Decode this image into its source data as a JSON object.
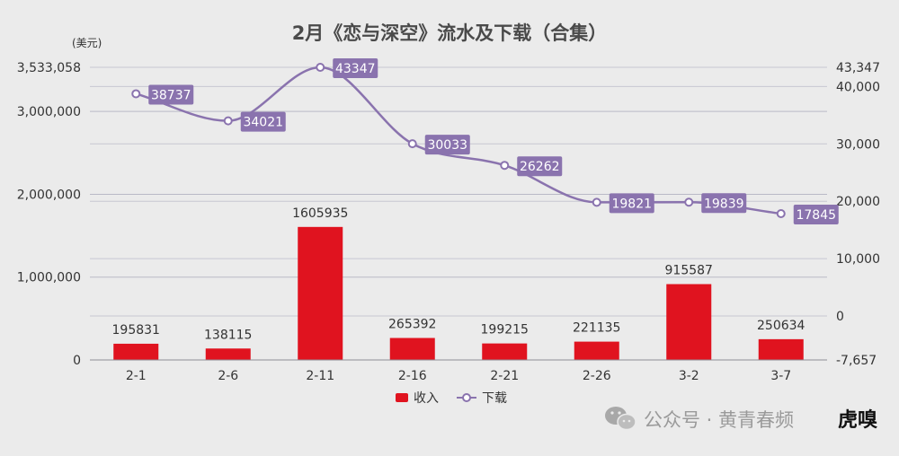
{
  "chart_data": {
    "type": "bar",
    "title": "2月《恋与深空》流水及下载（合集）",
    "categories": [
      "2-1",
      "2-6",
      "2-11",
      "2-16",
      "2-21",
      "2-26",
      "3-2",
      "3-7"
    ],
    "series": [
      {
        "name": "收入",
        "type": "bar",
        "axis": "left",
        "color": "#e0131f",
        "values": [
          195831,
          138115,
          1605935,
          265392,
          199215,
          221135,
          915587,
          250634
        ]
      },
      {
        "name": "下载",
        "type": "line",
        "axis": "right",
        "color": "#8a73ae",
        "values": [
          38737,
          34021,
          43347,
          30033,
          26262,
          19821,
          19839,
          17845
        ]
      }
    ],
    "y_left": {
      "unit": "(美元)",
      "min": 0,
      "max": 3533058,
      "ticks": [
        "0",
        "1,000,000",
        "2,000,000",
        "3,000,000",
        "3,533,058"
      ]
    },
    "y_right": {
      "min": -7657,
      "max": 43347,
      "ticks": [
        "-7,657",
        "0",
        "10,000",
        "20,000",
        "30,000",
        "40,000",
        "43,347"
      ]
    },
    "legend": {
      "position": "bottom",
      "items": [
        "收入",
        "下载"
      ]
    },
    "grid": true
  },
  "watermark": {
    "text": "公众号 · 黄青春频",
    "logo": "虎嗅"
  }
}
